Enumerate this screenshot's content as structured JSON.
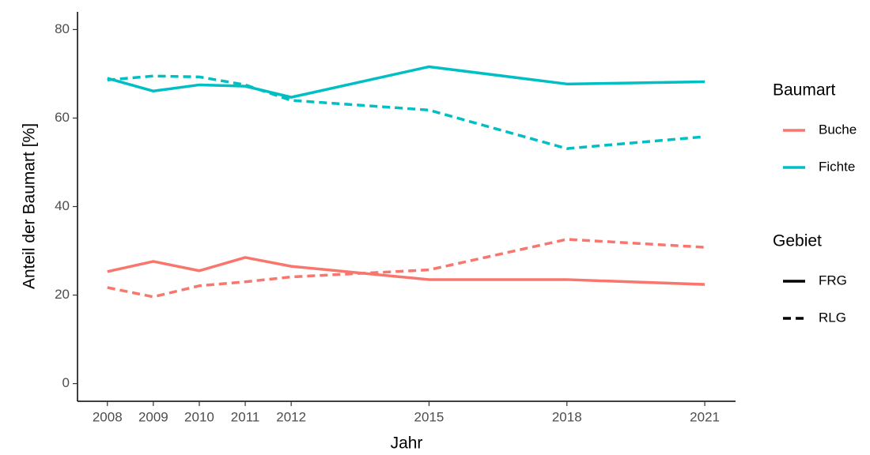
{
  "chart_data": {
    "type": "line",
    "x_label": "Jahr",
    "y_label": "Anteil der Baumart [%]",
    "x": [
      2008,
      2009,
      2010,
      2011,
      2012,
      2015,
      2018,
      2021
    ],
    "xlim": [
      2007.35,
      2021.67
    ],
    "xticks": [
      2008,
      2009,
      2010,
      2011,
      2012,
      2015,
      2018,
      2021
    ],
    "ylim": [
      -4,
      84
    ],
    "yticks": [
      0,
      20,
      40,
      60,
      80
    ],
    "series": [
      {
        "color": "#F8766D",
        "linetype": "solid",
        "values": [
          25.3,
          27.6,
          25.5,
          28.5,
          26.5,
          23.5,
          23.5,
          22.4
        ]
      },
      {
        "color": "#F8766D",
        "linetype": "dashed",
        "values": [
          21.7,
          19.6,
          22.1,
          23.0,
          24.1,
          25.7,
          32.6,
          30.8
        ]
      },
      {
        "color": "#00BFC4",
        "linetype": "solid",
        "values": [
          69.0,
          66.1,
          67.5,
          67.2,
          64.7,
          71.6,
          67.7,
          68.2
        ]
      },
      {
        "color": "#00BFC4",
        "linetype": "dashed",
        "values": [
          68.6,
          69.5,
          69.3,
          67.5,
          64.0,
          61.8,
          53.1,
          55.8
        ]
      }
    ],
    "legend": [
      {
        "title": "Baumart",
        "entries": [
          {
            "label": "Buche",
            "color": "#F8766D",
            "linetype": "solid"
          },
          {
            "label": "Fichte",
            "color": "#00BFC4",
            "linetype": "solid"
          }
        ]
      },
      {
        "title": "Gebiet",
        "entries": [
          {
            "label": "FRG",
            "color": "#000000",
            "linetype": "solid"
          },
          {
            "label": "RLG",
            "color": "#000000",
            "linetype": "dashed"
          }
        ]
      }
    ]
  }
}
